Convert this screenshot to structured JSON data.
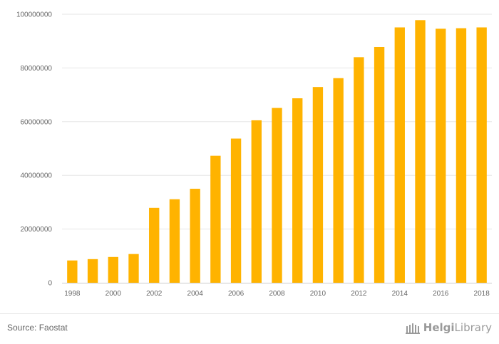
{
  "chart_data": {
    "type": "bar",
    "categories": [
      "1998",
      "1999",
      "2000",
      "2001",
      "2002",
      "2003",
      "2004",
      "2005",
      "2006",
      "2007",
      "2008",
      "2009",
      "2010",
      "2011",
      "2012",
      "2013",
      "2014",
      "2015",
      "2016",
      "2017",
      "2018"
    ],
    "x_tick_labels": [
      "1998",
      "2000",
      "2002",
      "2004",
      "2006",
      "2008",
      "2010",
      "2012",
      "2014",
      "2016",
      "2018"
    ],
    "values": [
      8300000,
      8800000,
      9600000,
      10700000,
      27900000,
      31100000,
      35000000,
      47300000,
      53700000,
      60500000,
      65100000,
      68700000,
      72900000,
      76200000,
      84000000,
      87800000,
      95100000,
      97800000,
      94600000,
      94800000,
      95100000
    ],
    "y_ticks": [
      0,
      20000000,
      40000000,
      60000000,
      80000000,
      100000000
    ],
    "y_tick_labels": [
      "0",
      "20000000",
      "40000000",
      "60000000",
      "80000000",
      "100000000"
    ],
    "ylim": [
      0,
      100000000
    ],
    "grid": "horizontal",
    "bar_color": "#FFB300",
    "title": "",
    "xlabel": "",
    "ylabel": ""
  },
  "footer": {
    "source": "Source: Faostat",
    "logo_text_a": "Helgi",
    "logo_text_b": "Library"
  },
  "colors": {
    "grid": "#e6e6e6",
    "axis": "#cccccc",
    "tick_text": "#666666"
  }
}
